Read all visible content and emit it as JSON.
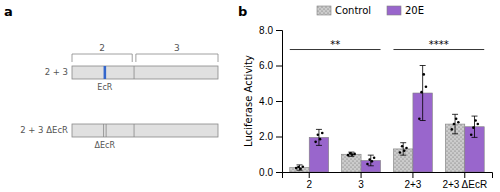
{
  "chart_data": [
    {
      "type": "diagram",
      "title": "a",
      "annotations": [
        "2",
        "3",
        "EcR",
        "2 + 3",
        "ΔEcR",
        "2 + 3 ΔEcR"
      ]
    },
    {
      "type": "bar",
      "title": "b",
      "categories": [
        "2",
        "3",
        "2+3",
        "2+3 ΔEcR"
      ],
      "series": [
        {
          "name": "Control",
          "color": "#cccccc",
          "values": [
            0.25,
            1.0,
            1.3,
            2.7
          ],
          "errors": [
            0.15,
            0.12,
            0.35,
            0.55
          ],
          "points": [
            [
              0.22,
              0.28,
              0.18,
              0.3
            ],
            [
              0.95,
              1.05,
              0.98,
              1.02
            ],
            [
              1.1,
              1.45,
              1.2,
              1.35
            ],
            [
              2.4,
              2.7,
              3.0,
              2.8
            ]
          ]
        },
        {
          "name": "20E",
          "color": "#9966cc",
          "values": [
            1.95,
            0.65,
            4.45,
            2.55
          ],
          "errors": [
            0.45,
            0.3,
            1.55,
            0.6
          ],
          "points": [
            [
              1.7,
              2.1,
              1.85,
              2.2
            ],
            [
              0.45,
              0.7,
              0.6,
              0.8
            ],
            [
              3.0,
              4.5,
              5.5,
              4.8
            ],
            [
              2.1,
              2.5,
              2.9,
              2.7
            ]
          ]
        }
      ],
      "ylabel": "Luciferase Activity",
      "ylim": [
        0,
        8.0
      ],
      "yticks": [
        {
          "value": 0.0,
          "label": "0.0"
        },
        {
          "value": 2.0,
          "label": "2.0"
        },
        {
          "value": 4.0,
          "label": "4.0"
        },
        {
          "value": 6.0,
          "label": "6.0"
        },
        {
          "value": 8.0,
          "label": "8.0"
        }
      ],
      "annotations": [
        {
          "from": "2",
          "to": "3",
          "y": 6.9,
          "label": "**"
        },
        {
          "from": "2+3",
          "to": "2+3 ΔEcR",
          "y": 6.9,
          "label": "****"
        }
      ],
      "legend": "top"
    }
  ]
}
